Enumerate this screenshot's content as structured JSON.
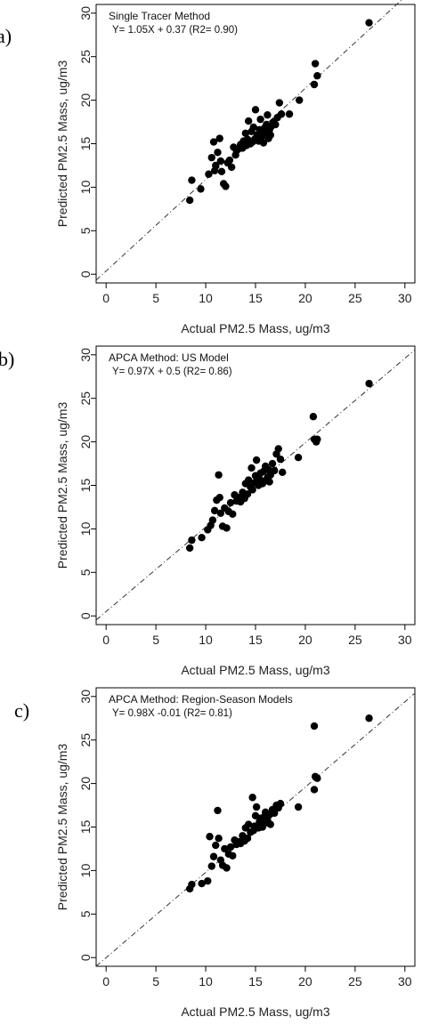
{
  "chart_data": [
    {
      "type": "scatter",
      "panel_label": "a)",
      "xlabel": "Actual PM2.5 Mass, ug/m3",
      "ylabel": "Predicted PM2.5 Mass, ug/m3",
      "xlim": [
        -1,
        31
      ],
      "ylim": [
        -1,
        31
      ],
      "xticks": [
        "0",
        "5",
        "10",
        "15",
        "20",
        "25",
        "30"
      ],
      "yticks": [
        "0",
        "5",
        "10",
        "15",
        "20",
        "25",
        "30"
      ],
      "annotation_title": "Single Tracer Method",
      "annotation_equation": "Y= 1.05X + 0.37   (R2= 0.90)",
      "fit_line": {
        "slope": 1.05,
        "intercept": 0.37
      },
      "points": [
        [
          8.4,
          8.5
        ],
        [
          8.6,
          10.8
        ],
        [
          9.5,
          9.8
        ],
        [
          10.3,
          11.5
        ],
        [
          10.6,
          13.4
        ],
        [
          10.8,
          15.2
        ],
        [
          10.9,
          11.9
        ],
        [
          11.0,
          12.5
        ],
        [
          11.2,
          14.0
        ],
        [
          11.4,
          15.6
        ],
        [
          11.5,
          13.0
        ],
        [
          11.6,
          11.8
        ],
        [
          11.8,
          10.4
        ],
        [
          12.0,
          10.1
        ],
        [
          12.2,
          12.8
        ],
        [
          12.4,
          13.1
        ],
        [
          12.6,
          12.3
        ],
        [
          12.8,
          14.6
        ],
        [
          13.0,
          13.7
        ],
        [
          13.1,
          14.2
        ],
        [
          13.3,
          14.4
        ],
        [
          13.5,
          14.9
        ],
        [
          13.7,
          14.5
        ],
        [
          13.8,
          15.3
        ],
        [
          14.0,
          16.2
        ],
        [
          14.1,
          14.8
        ],
        [
          14.2,
          15.5
        ],
        [
          14.3,
          17.6
        ],
        [
          14.5,
          15.0
        ],
        [
          14.6,
          16.4
        ],
        [
          14.7,
          15.2
        ],
        [
          14.8,
          16.9
        ],
        [
          15.0,
          15.6
        ],
        [
          15.0,
          18.9
        ],
        [
          15.2,
          16.0
        ],
        [
          15.3,
          15.3
        ],
        [
          15.4,
          16.6
        ],
        [
          15.5,
          17.8
        ],
        [
          15.6,
          15.8
        ],
        [
          15.7,
          16.3
        ],
        [
          15.8,
          15.1
        ],
        [
          15.9,
          16.8
        ],
        [
          16.0,
          16.1
        ],
        [
          16.1,
          17.2
        ],
        [
          16.2,
          18.3
        ],
        [
          16.3,
          15.6
        ],
        [
          16.4,
          16.6
        ],
        [
          16.5,
          16.0
        ],
        [
          16.6,
          17.0
        ],
        [
          16.8,
          17.5
        ],
        [
          17.0,
          17.2
        ],
        [
          17.2,
          18.0
        ],
        [
          17.4,
          19.7
        ],
        [
          17.6,
          18.4
        ],
        [
          18.4,
          18.4
        ],
        [
          19.4,
          20.0
        ],
        [
          20.9,
          21.8
        ],
        [
          21.0,
          24.2
        ],
        [
          21.2,
          22.8
        ],
        [
          26.4,
          28.9
        ]
      ]
    },
    {
      "type": "scatter",
      "panel_label": "b)",
      "xlabel": "Actual PM2.5 Mass, ug/m3",
      "ylabel": "Predicted PM2.5 Mass, ug/m3",
      "xlim": [
        -1,
        31
      ],
      "ylim": [
        -1,
        31
      ],
      "xticks": [
        "0",
        "5",
        "10",
        "15",
        "20",
        "25",
        "30"
      ],
      "yticks": [
        "0",
        "5",
        "10",
        "15",
        "20",
        "25",
        "30"
      ],
      "annotation_title": "APCA Method: US Model",
      "annotation_equation": "Y= 0.97X + 0.5   (R2= 0.86)",
      "fit_line": {
        "slope": 0.97,
        "intercept": 0.5
      },
      "points": [
        [
          8.4,
          7.8
        ],
        [
          8.6,
          8.7
        ],
        [
          9.6,
          9.0
        ],
        [
          10.2,
          9.9
        ],
        [
          10.5,
          10.4
        ],
        [
          10.7,
          11.0
        ],
        [
          10.9,
          12.1
        ],
        [
          11.1,
          13.3
        ],
        [
          11.3,
          16.2
        ],
        [
          11.4,
          13.6
        ],
        [
          11.5,
          11.8
        ],
        [
          11.7,
          10.3
        ],
        [
          11.9,
          12.4
        ],
        [
          12.1,
          10.1
        ],
        [
          12.3,
          12.0
        ],
        [
          12.5,
          13.0
        ],
        [
          12.7,
          11.7
        ],
        [
          12.9,
          13.9
        ],
        [
          13.1,
          13.2
        ],
        [
          13.3,
          13.6
        ],
        [
          13.5,
          13.1
        ],
        [
          13.7,
          14.2
        ],
        [
          13.9,
          13.5
        ],
        [
          14.0,
          15.2
        ],
        [
          14.2,
          14.0
        ],
        [
          14.3,
          15.6
        ],
        [
          14.5,
          14.8
        ],
        [
          14.6,
          17.0
        ],
        [
          14.7,
          14.5
        ],
        [
          14.9,
          15.3
        ],
        [
          15.0,
          16.1
        ],
        [
          15.1,
          17.9
        ],
        [
          15.3,
          15.0
        ],
        [
          15.4,
          15.7
        ],
        [
          15.5,
          16.4
        ],
        [
          15.7,
          15.2
        ],
        [
          15.8,
          16.6
        ],
        [
          15.9,
          15.5
        ],
        [
          16.0,
          17.2
        ],
        [
          16.2,
          15.9
        ],
        [
          16.3,
          16.8
        ],
        [
          16.4,
          15.4
        ],
        [
          16.5,
          16.2
        ],
        [
          16.7,
          17.5
        ],
        [
          16.9,
          16.7
        ],
        [
          17.1,
          18.6
        ],
        [
          17.3,
          19.2
        ],
        [
          17.5,
          18.0
        ],
        [
          17.7,
          16.5
        ],
        [
          19.3,
          18.2
        ],
        [
          20.8,
          22.9
        ],
        [
          20.9,
          20.3
        ],
        [
          21.1,
          20.0
        ],
        [
          21.2,
          20.3
        ],
        [
          26.4,
          26.7
        ]
      ]
    },
    {
      "type": "scatter",
      "panel_label": "c)",
      "xlabel": "Actual PM2.5 Mass, ug/m3",
      "ylabel": "Predicted PM2.5 Mass, ug/m3",
      "xlim": [
        -1,
        31
      ],
      "ylim": [
        -1,
        31
      ],
      "xticks": [
        "0",
        "5",
        "10",
        "15",
        "20",
        "25",
        "30"
      ],
      "yticks": [
        "0",
        "5",
        "10",
        "15",
        "20",
        "25",
        "30"
      ],
      "annotation_title": "APCA Method: Region-Season Models",
      "annotation_equation": "Y= 0.98X -0.01  (R2= 0.81)",
      "fit_line": {
        "slope": 0.98,
        "intercept": -0.01
      },
      "points": [
        [
          8.4,
          7.9
        ],
        [
          8.6,
          8.4
        ],
        [
          9.6,
          8.5
        ],
        [
          10.2,
          8.8
        ],
        [
          10.4,
          13.9
        ],
        [
          10.6,
          10.5
        ],
        [
          10.8,
          11.6
        ],
        [
          11.0,
          12.9
        ],
        [
          11.2,
          16.9
        ],
        [
          11.3,
          13.7
        ],
        [
          11.5,
          11.2
        ],
        [
          11.7,
          10.6
        ],
        [
          11.9,
          12.5
        ],
        [
          12.1,
          10.3
        ],
        [
          12.3,
          11.9
        ],
        [
          12.5,
          12.7
        ],
        [
          12.7,
          11.7
        ],
        [
          12.9,
          13.5
        ],
        [
          13.1,
          13.0
        ],
        [
          13.3,
          13.3
        ],
        [
          13.5,
          13.1
        ],
        [
          13.7,
          14.0
        ],
        [
          13.9,
          13.4
        ],
        [
          14.0,
          14.9
        ],
        [
          14.2,
          13.7
        ],
        [
          14.3,
          15.3
        ],
        [
          14.5,
          14.4
        ],
        [
          14.7,
          18.4
        ],
        [
          14.8,
          14.6
        ],
        [
          14.9,
          15.1
        ],
        [
          15.0,
          16.3
        ],
        [
          15.1,
          17.3
        ],
        [
          15.3,
          14.9
        ],
        [
          15.4,
          15.6
        ],
        [
          15.5,
          16.0
        ],
        [
          15.7,
          15.0
        ],
        [
          15.8,
          16.1
        ],
        [
          15.9,
          15.4
        ],
        [
          16.0,
          16.7
        ],
        [
          16.2,
          15.8
        ],
        [
          16.4,
          16.4
        ],
        [
          16.5,
          15.3
        ],
        [
          16.7,
          17.0
        ],
        [
          16.9,
          16.6
        ],
        [
          17.1,
          17.5
        ],
        [
          17.3,
          17.2
        ],
        [
          17.5,
          17.7
        ],
        [
          19.3,
          17.3
        ],
        [
          20.9,
          26.6
        ],
        [
          20.9,
          19.3
        ],
        [
          21.0,
          20.8
        ],
        [
          21.2,
          20.6
        ],
        [
          26.4,
          27.5
        ]
      ]
    }
  ]
}
